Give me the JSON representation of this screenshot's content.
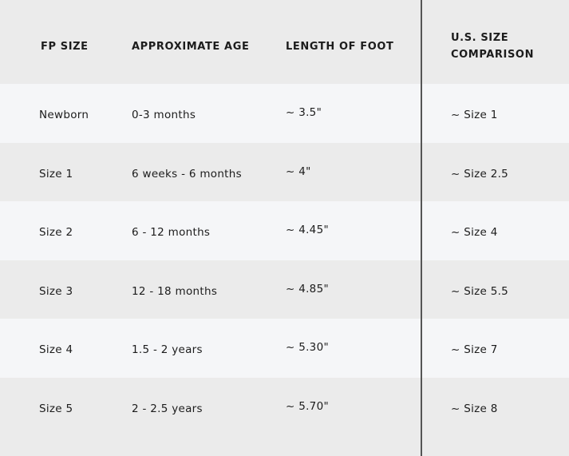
{
  "table": {
    "headers": [
      "FP SIZE",
      "APPROXIMATE AGE",
      "LENGTH OF FOOT",
      "U.S. SIZE",
      "COMPARISON"
    ],
    "rows": [
      [
        "Newborn",
        "0-3 months",
        "~ 3.5\"",
        "~ Size 1"
      ],
      [
        "Size 1",
        "6 weeks - 6 months",
        "~ 4\"",
        "~ Size 2.5"
      ],
      [
        "Size 2",
        "6 - 12 months",
        "~ 4.45\"",
        "~ Size 4"
      ],
      [
        "Size 3",
        "12 - 18 months",
        "~ 4.85\"",
        "~ Size 5.5"
      ],
      [
        "Size 4",
        "1.5 - 2 years",
        "~ 5.30\"",
        "~ Size 7"
      ],
      [
        "Size 5",
        "2 - 2.5 years",
        "~ 5.70\"",
        "~ Size 8"
      ]
    ]
  },
  "colors": {
    "row_light": "#f5f6f8",
    "row_dark": "#ebebeb",
    "divider": "#555555"
  }
}
